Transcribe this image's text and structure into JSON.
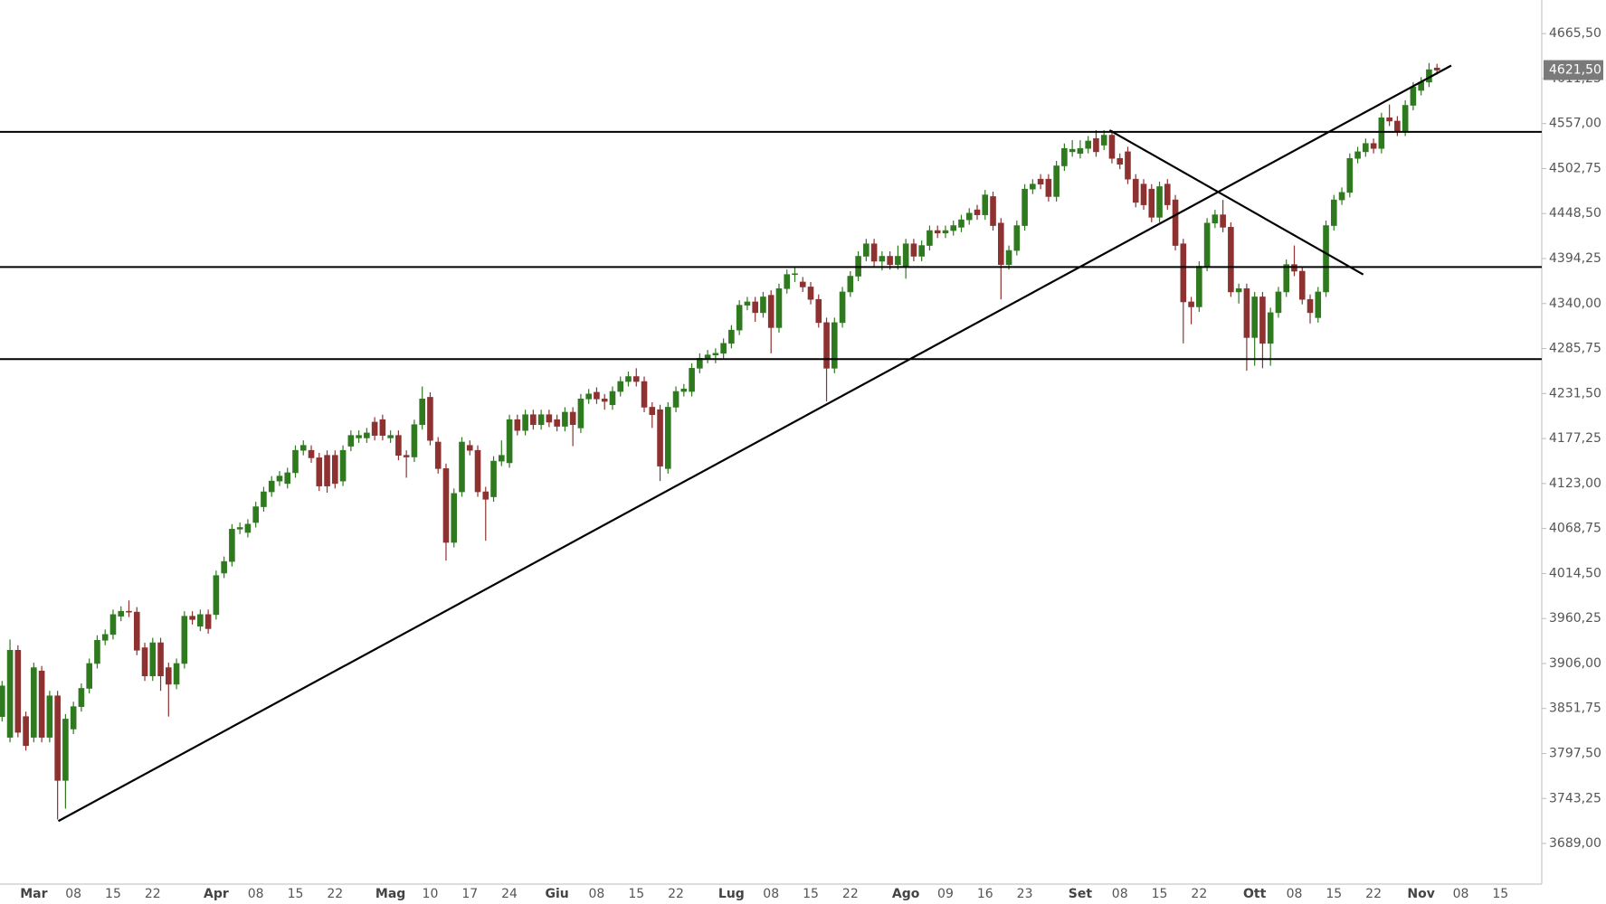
{
  "chart_data": {
    "type": "candlestick",
    "categories": [
      null,
      null,
      null,
      null,
      "Mar",
      null,
      null,
      null,
      null,
      "08",
      null,
      null,
      null,
      null,
      "15",
      null,
      null,
      null,
      null,
      "22",
      null,
      null,
      null,
      null,
      null,
      null,
      null,
      "Apr",
      null,
      null,
      null,
      null,
      "08",
      null,
      null,
      null,
      null,
      "15",
      null,
      null,
      null,
      null,
      "22",
      null,
      null,
      null,
      null,
      null,
      null,
      "Mag",
      null,
      null,
      null,
      null,
      "10",
      null,
      null,
      null,
      null,
      "17",
      null,
      null,
      null,
      null,
      "24",
      null,
      null,
      null,
      null,
      null,
      "Giu",
      null,
      null,
      null,
      null,
      "08",
      null,
      null,
      null,
      null,
      "15",
      null,
      null,
      null,
      null,
      "22",
      null,
      null,
      null,
      null,
      null,
      null,
      "Lug",
      null,
      null,
      null,
      null,
      "08",
      null,
      null,
      null,
      null,
      "15",
      null,
      null,
      null,
      null,
      "22",
      null,
      null,
      null,
      null,
      null,
      null,
      "Ago",
      null,
      null,
      null,
      null,
      "09",
      null,
      null,
      null,
      null,
      "16",
      null,
      null,
      null,
      null,
      "23",
      null,
      null,
      null,
      null,
      null,
      null,
      "Set",
      null,
      null,
      null,
      null,
      "08",
      null,
      null,
      null,
      null,
      "15",
      null,
      null,
      null,
      null,
      "22",
      null,
      null,
      null,
      null,
      null,
      null,
      "Ott",
      null,
      null,
      null,
      null,
      "08",
      null,
      null,
      null,
      null,
      "15",
      null,
      null,
      null,
      null,
      "22",
      null,
      null,
      null,
      null,
      null,
      "Nov",
      null,
      null,
      null,
      null,
      "08",
      null,
      null,
      null,
      null,
      "15",
      null,
      null,
      null,
      null,
      null
    ],
    "open": [
      3842,
      3817,
      3922,
      3842,
      3817,
      3897,
      3817,
      3867,
      3765,
      3827,
      3854,
      3876,
      3906,
      3934,
      3941,
      3963,
      3969,
      3968,
      3925,
      3891,
      3931,
      3901,
      3881,
      3906,
      3963,
      3951,
      3965,
      3965,
      4015,
      4029,
      4068,
      4064,
      4076,
      4095,
      4113,
      4126,
      4123,
      4136,
      4163,
      4163,
      4154,
      4157,
      4157,
      4126,
      4168,
      4178,
      4178,
      4197,
      4200,
      4178,
      4181,
      4157,
      4155,
      4194,
      4227,
      4173,
      4141,
      4052,
      4113,
      4169,
      4163,
      4113,
      4107,
      4150,
      4148,
      4200,
      4187,
      4206,
      4194,
      4206,
      4200,
      4192,
      4209,
      4190,
      4225,
      4233,
      4225,
      4218,
      4234,
      4246,
      4252,
      4246,
      4215,
      4212,
      4141,
      4215,
      4234,
      4234,
      4262,
      4274,
      4278,
      4280,
      4292,
      4308,
      4338,
      4342,
      4329,
      4350,
      4311,
      4358,
      4375,
      4366,
      4360,
      4345,
      4317,
      4262,
      4317,
      4354,
      4373,
      4397,
      4412,
      4391,
      4397,
      4387,
      4385,
      4412,
      4397,
      4410,
      4428,
      4425,
      4428,
      4432,
      4441,
      4453,
      4447,
      4469,
      4437,
      4387,
      4404,
      4434,
      4478,
      4490,
      4490,
      4469,
      4506,
      4523,
      4521,
      4527,
      4539,
      4531,
      4543,
      4515,
      4523,
      4490,
      4484,
      4478,
      4444,
      4484,
      4465,
      4412,
      4342,
      4336,
      4385,
      4437,
      4447,
      4432,
      4354,
      4358,
      4299,
      4348,
      4292,
      4329,
      4354,
      4387,
      4379,
      4345,
      4323,
      4354,
      4434,
      4465,
      4474,
      4515,
      4523,
      4533,
      4527,
      4564,
      4560,
      4548,
      4579,
      4597,
      4607,
      4624,
      null,
      null,
      null,
      null,
      null,
      null,
      null,
      null,
      null,
      null,
      null,
      null,
      null
    ],
    "high": [
      3885,
      3935,
      3928,
      3848,
      3907,
      3903,
      3873,
      3873,
      3845,
      3860,
      3882,
      3912,
      3940,
      3947,
      3971,
      3975,
      3982,
      3974,
      3931,
      3937,
      3937,
      3907,
      3912,
      3969,
      3969,
      3971,
      3971,
      4018,
      4035,
      4074,
      4076,
      4080,
      4101,
      4119,
      4132,
      4138,
      4142,
      4169,
      4175,
      4169,
      4160,
      4163,
      4163,
      4169,
      4187,
      4187,
      4190,
      4203,
      4206,
      4187,
      4187,
      4163,
      4200,
      4240,
      4233,
      4179,
      4147,
      4117,
      4179,
      4175,
      4169,
      4119,
      4156,
      4175,
      4206,
      4206,
      4212,
      4212,
      4212,
      4212,
      4206,
      4215,
      4215,
      4231,
      4237,
      4239,
      4231,
      4240,
      4252,
      4258,
      4262,
      4252,
      4221,
      4218,
      4221,
      4240,
      4243,
      4268,
      4280,
      4284,
      4286,
      4298,
      4314,
      4344,
      4348,
      4348,
      4354,
      4356,
      4364,
      4381,
      4385,
      4372,
      4366,
      4351,
      4323,
      4323,
      4360,
      4379,
      4403,
      4418,
      4418,
      4403,
      4403,
      4410,
      4418,
      4418,
      4416,
      4434,
      4434,
      4434,
      4440,
      4447,
      4455,
      4459,
      4477,
      4475,
      4443,
      4410,
      4440,
      4484,
      4490,
      4496,
      4496,
      4512,
      4533,
      4537,
      4537,
      4542,
      4549,
      4549,
      4549,
      4521,
      4529,
      4496,
      4490,
      4484,
      4487,
      4490,
      4471,
      4418,
      4348,
      4391,
      4443,
      4453,
      4465,
      4438,
      4364,
      4364,
      4354,
      4354,
      4335,
      4360,
      4393,
      4410,
      4385,
      4351,
      4360,
      4440,
      4471,
      4480,
      4521,
      4529,
      4539,
      4539,
      4570,
      4580,
      4566,
      4585,
      4607,
      4613,
      4630,
      4629,
      null,
      null,
      null,
      null,
      null,
      null,
      null,
      null,
      null,
      null,
      null,
      null,
      null
    ],
    "low": [
      3836,
      3811,
      3817,
      3801,
      3811,
      3811,
      3811,
      3718,
      3731,
      3821,
      3848,
      3870,
      3900,
      3928,
      3935,
      3957,
      3962,
      3916,
      3885,
      3885,
      3873,
      3842,
      3875,
      3900,
      3953,
      3945,
      3942,
      3959,
      4009,
      4023,
      4062,
      4058,
      4070,
      4089,
      4107,
      4120,
      4117,
      4130,
      4157,
      4148,
      4114,
      4112,
      4117,
      4120,
      4162,
      4172,
      4172,
      4175,
      4175,
      4172,
      4151,
      4130,
      4149,
      4188,
      4169,
      4135,
      4030,
      4046,
      4107,
      4157,
      4107,
      4054,
      4101,
      4144,
      4142,
      4181,
      4181,
      4188,
      4188,
      4191,
      4186,
      4186,
      4168,
      4184,
      4219,
      4219,
      4212,
      4212,
      4228,
      4240,
      4240,
      4209,
      4190,
      4126,
      4135,
      4209,
      4228,
      4228,
      4256,
      4268,
      4268,
      4274,
      4286,
      4302,
      4332,
      4318,
      4323,
      4280,
      4305,
      4352,
      4366,
      4354,
      4339,
      4311,
      4222,
      4256,
      4311,
      4348,
      4367,
      4391,
      4385,
      4380,
      4381,
      4381,
      4370,
      4391,
      4391,
      4404,
      4419,
      4419,
      4422,
      4426,
      4435,
      4441,
      4441,
      4428,
      4345,
      4381,
      4398,
      4428,
      4472,
      4478,
      4463,
      4463,
      4500,
      4517,
      4515,
      4521,
      4517,
      4525,
      4509,
      4502,
      4484,
      4456,
      4453,
      4438,
      4438,
      4453,
      4404,
      4292,
      4315,
      4330,
      4379,
      4431,
      4426,
      4348,
      4340,
      4259,
      4265,
      4262,
      4265,
      4323,
      4348,
      4373,
      4339,
      4316,
      4317,
      4348,
      4428,
      4459,
      4468,
      4509,
      4517,
      4521,
      4521,
      4554,
      4542,
      4542,
      4573,
      4591,
      4601,
      4616,
      null,
      null,
      null,
      null,
      null,
      null,
      null,
      null,
      null,
      null,
      null,
      null,
      null
    ],
    "close": [
      3879,
      3922,
      3823,
      3807,
      3901,
      3817,
      3867,
      3765,
      3839,
      3854,
      3876,
      3906,
      3934,
      3941,
      3965,
      3969,
      3968,
      3922,
      3891,
      3931,
      3891,
      3881,
      3906,
      3963,
      3959,
      3965,
      3948,
      4012,
      4029,
      4068,
      4070,
      4074,
      4095,
      4113,
      4126,
      4132,
      4136,
      4163,
      4169,
      4154,
      4120,
      4120,
      4123,
      4163,
      4181,
      4181,
      4184,
      4181,
      4181,
      4181,
      4157,
      4155,
      4194,
      4225,
      4175,
      4141,
      4052,
      4111,
      4173,
      4163,
      4113,
      4104,
      4150,
      4157,
      4200,
      4187,
      4206,
      4194,
      4206,
      4197,
      4192,
      4209,
      4194,
      4225,
      4231,
      4225,
      4222,
      4234,
      4246,
      4252,
      4246,
      4215,
      4206,
      4144,
      4215,
      4234,
      4237,
      4262,
      4274,
      4278,
      4280,
      4292,
      4308,
      4338,
      4342,
      4329,
      4348,
      4311,
      4358,
      4375,
      4376,
      4360,
      4345,
      4317,
      4262,
      4317,
      4354,
      4373,
      4397,
      4412,
      4391,
      4397,
      4387,
      4397,
      4412,
      4397,
      4410,
      4428,
      4425,
      4428,
      4434,
      4441,
      4449,
      4447,
      4471,
      4434,
      4387,
      4404,
      4434,
      4478,
      4484,
      4484,
      4469,
      4506,
      4527,
      4526,
      4527,
      4536,
      4523,
      4543,
      4515,
      4508,
      4490,
      4462,
      4459,
      4444,
      4481,
      4459,
      4410,
      4342,
      4336,
      4385,
      4437,
      4447,
      4432,
      4354,
      4358,
      4299,
      4348,
      4292,
      4329,
      4354,
      4387,
      4379,
      4345,
      4329,
      4354,
      4434,
      4465,
      4474,
      4515,
      4523,
      4533,
      4527,
      4564,
      4560,
      4548,
      4579,
      4601,
      4607,
      4622,
      4621.5,
      null,
      null,
      null,
      null,
      null,
      null,
      null,
      null,
      null,
      null,
      null,
      null,
      null
    ],
    "up_color": "#2f7a1f",
    "down_color": "#8e3131",
    "ylim": [
      3640,
      4706
    ],
    "yticks": [
      {
        "value": 3689,
        "label": "3689,00"
      },
      {
        "value": 3743.25,
        "label": "3743,25"
      },
      {
        "value": 3797.5,
        "label": "3797,50"
      },
      {
        "value": 3851.75,
        "label": "3851,75"
      },
      {
        "value": 3906,
        "label": "3906,00"
      },
      {
        "value": 3960.25,
        "label": "3960,25"
      },
      {
        "value": 4014.5,
        "label": "4014,50"
      },
      {
        "value": 4068.75,
        "label": "4068,75"
      },
      {
        "value": 4123,
        "label": "4123,00"
      },
      {
        "value": 4177.25,
        "label": "4177,25"
      },
      {
        "value": 4231.5,
        "label": "4231,50"
      },
      {
        "value": 4285.75,
        "label": "4285,75"
      },
      {
        "value": 4340,
        "label": "4340,00"
      },
      {
        "value": 4394.25,
        "label": "4394,25"
      },
      {
        "value": 4448.5,
        "label": "4448,50"
      },
      {
        "value": 4502.75,
        "label": "4502,75"
      },
      {
        "value": 4557,
        "label": "4557,00"
      },
      {
        "value": 4611.25,
        "label": "4611,25"
      },
      {
        "value": 4665.5,
        "label": "4665,50"
      }
    ],
    "last_price": {
      "value": 4621.5,
      "label": "4621,50"
    },
    "hlines": [
      4547,
      4384,
      4273
    ],
    "trendlines": [
      {
        "x": [
          7.1,
          182.8
        ],
        "y": [
          3716,
          4627
        ]
      },
      {
        "x": [
          139.7,
          171.7
        ],
        "y": [
          4549,
          4375
        ]
      }
    ]
  }
}
